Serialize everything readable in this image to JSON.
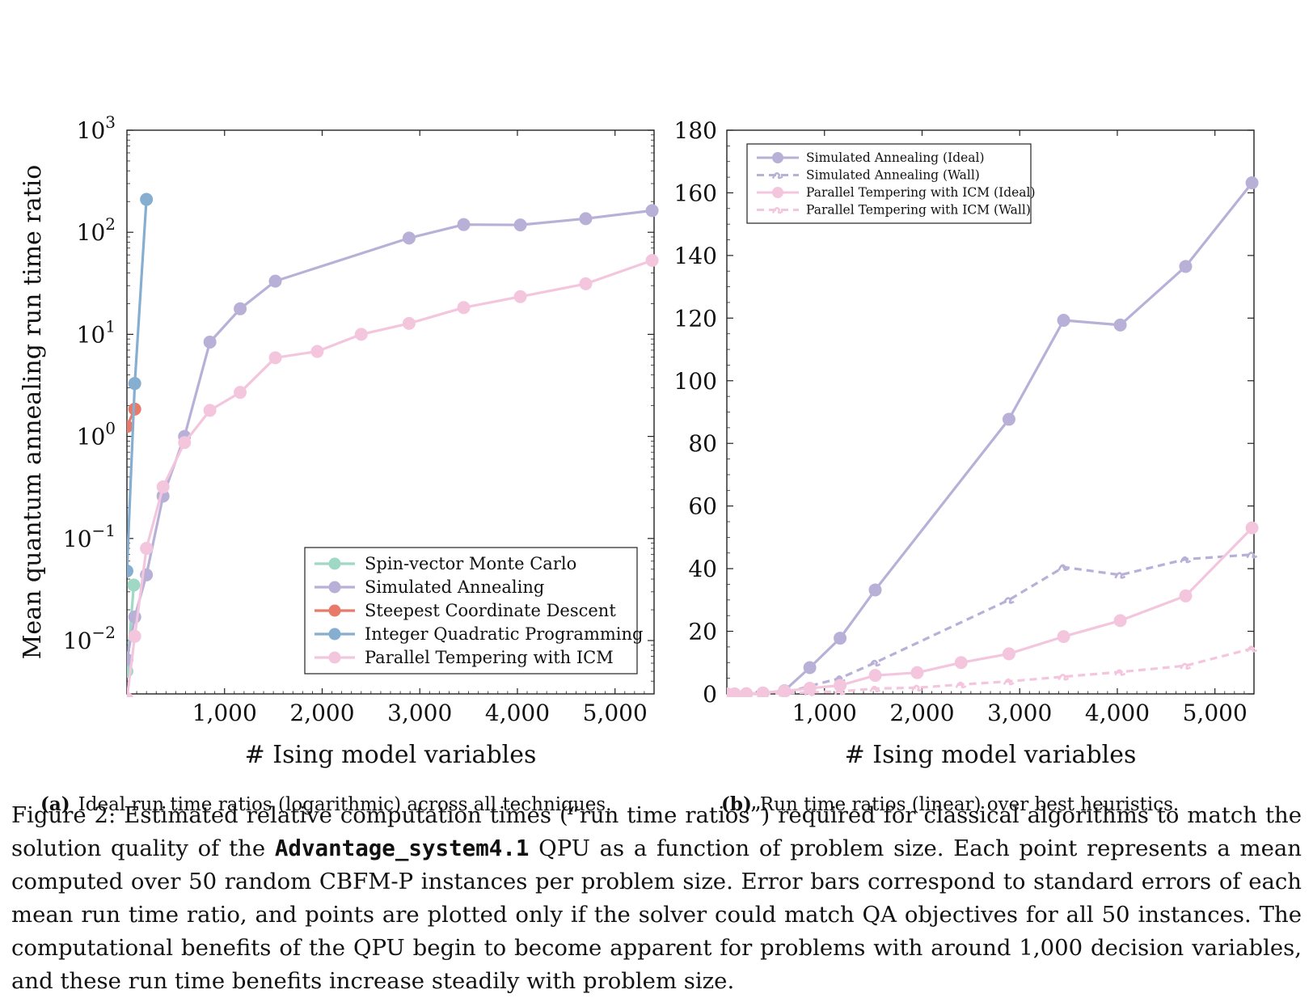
{
  "chart_data": [
    {
      "id": "a",
      "type": "line",
      "y_scale": "log",
      "xlabel": "# Ising model variables",
      "ylabel": "Mean quantum annealing run time ratio",
      "xlim": [
        0,
        5400
      ],
      "ylim": [
        0.003,
        1000
      ],
      "x_ticks": [
        1000,
        2000,
        3000,
        4000,
        5000
      ],
      "x_tick_labels": [
        "1,000",
        "2,000",
        "3,000",
        "4,000",
        "5,000"
      ],
      "y_tick_labels": [
        {
          "base": "10",
          "exp": "3",
          "value": 1000
        },
        {
          "base": "10",
          "exp": "2",
          "value": 100
        },
        {
          "base": "10",
          "exp": "1",
          "value": 10
        },
        {
          "base": "10",
          "exp": "0",
          "value": 1
        },
        {
          "base": "10",
          "exp": "−1",
          "value": 0.1
        },
        {
          "base": "10",
          "exp": "−2",
          "value": 0.01
        }
      ],
      "legend_position": "bottom-right",
      "series": [
        {
          "name": "Spin-vector Monte Carlo",
          "color": "#9fd8c4",
          "x": [
            0,
            70
          ],
          "y": [
            0.005,
            0.035
          ]
        },
        {
          "name": "Simulated Annealing",
          "color": "#b9b0d8",
          "x": [
            0,
            80,
            200,
            370,
            590,
            850,
            1160,
            1520,
            2890,
            3450,
            4030,
            4700,
            5380
          ],
          "y": [
            0.0065,
            0.017,
            0.044,
            0.26,
            1.0,
            8.4,
            17.8,
            33.2,
            87.7,
            119,
            118,
            136,
            163
          ]
        },
        {
          "name": "Steepest Coordinate Descent",
          "color": "#e87a6a",
          "x": [
            0,
            80
          ],
          "y": [
            1.25,
            1.85
          ]
        },
        {
          "name": "Integer Quadratic Programming",
          "color": "#86aed0",
          "x": [
            0,
            80,
            200
          ],
          "y": [
            0.048,
            3.3,
            210
          ]
        },
        {
          "name": "Parallel Tempering with ICM",
          "color": "#f4c6de",
          "x": [
            0,
            80,
            200,
            370,
            590,
            850,
            1160,
            1520,
            1950,
            2400,
            2890,
            3450,
            4030,
            4700,
            5380
          ],
          "y": [
            0.002,
            0.011,
            0.08,
            0.32,
            0.87,
            1.8,
            2.7,
            5.9,
            6.8,
            10,
            12.8,
            18.3,
            23.4,
            31.3,
            53
          ]
        }
      ],
      "subcaption_label": "(a)",
      "subcaption": "Ideal run time ratios (logarithmic) across all techniques."
    },
    {
      "id": "b",
      "type": "line",
      "y_scale": "linear",
      "xlabel": "# Ising model variables",
      "ylabel": "",
      "xlim": [
        0,
        5400
      ],
      "ylim": [
        0,
        180
      ],
      "x_ticks": [
        1000,
        2000,
        3000,
        4000,
        5000
      ],
      "x_tick_labels": [
        "1,000",
        "2,000",
        "3,000",
        "4,000",
        "5,000"
      ],
      "y_ticks": [
        0,
        20,
        40,
        60,
        80,
        100,
        120,
        140,
        160,
        180
      ],
      "legend_position": "top-left",
      "series": [
        {
          "name": "Simulated Annealing (Ideal)",
          "color": "#b9b0d8",
          "dash": false,
          "x": [
            0,
            80,
            200,
            370,
            590,
            850,
            1160,
            1520,
            2890,
            3450,
            4030,
            4700,
            5380
          ],
          "y": [
            0,
            0,
            0,
            0.3,
            1.0,
            8.4,
            17.8,
            33.2,
            87.7,
            119.3,
            117.8,
            136.5,
            163.2
          ]
        },
        {
          "name": "Simulated Annealing (Wall)",
          "color": "#b9b0d8",
          "dash": true,
          "x": [
            0,
            80,
            200,
            370,
            590,
            850,
            1160,
            1520,
            2890,
            3450,
            4030,
            4700,
            5380
          ],
          "y": [
            0,
            0,
            0,
            0,
            0.3,
            2.5,
            5.0,
            10.0,
            30.0,
            40.5,
            38.0,
            43.0,
            44.5
          ]
        },
        {
          "name": "Parallel Tempering with ICM (Ideal)",
          "color": "#f4c6de",
          "dash": false,
          "x": [
            0,
            80,
            200,
            370,
            590,
            850,
            1160,
            1520,
            1950,
            2400,
            2890,
            3450,
            4030,
            4700,
            5380
          ],
          "y": [
            0,
            0,
            0.1,
            0.3,
            0.87,
            1.8,
            2.7,
            5.9,
            6.8,
            10.0,
            12.8,
            18.3,
            23.4,
            31.3,
            53.0
          ]
        },
        {
          "name": "Parallel Tempering with ICM (Wall)",
          "color": "#f4c6de",
          "dash": true,
          "x": [
            0,
            80,
            200,
            370,
            590,
            850,
            1160,
            1520,
            1950,
            2400,
            2890,
            3450,
            4030,
            4700,
            5380
          ],
          "y": [
            0,
            0,
            0,
            0,
            0.2,
            0.5,
            0.8,
            1.7,
            2.0,
            3.0,
            4.0,
            5.5,
            7.0,
            9.0,
            14.5
          ]
        }
      ],
      "subcaption_label": "(b)",
      "subcaption": "Run time ratios (linear) over best heuristics."
    }
  ],
  "caption": {
    "part1": "Figure 2: Estimated relative computation times (“run time ratios”) required for classical algorithms to match the solution quality of the ",
    "code": "Advantage_system4.1",
    "part2": " QPU as a function of problem size. Each point represents a mean computed over 50 random CBFM-P instances per problem size. Error bars correspond to standard errors of each mean run time ratio, and points are plotted only if the solver could match QA objectives for all 50 instances. The computational benefits of the QPU begin to become apparent for problems with around 1,000 decision variables, and these run time benefits increase steadily with problem size."
  }
}
